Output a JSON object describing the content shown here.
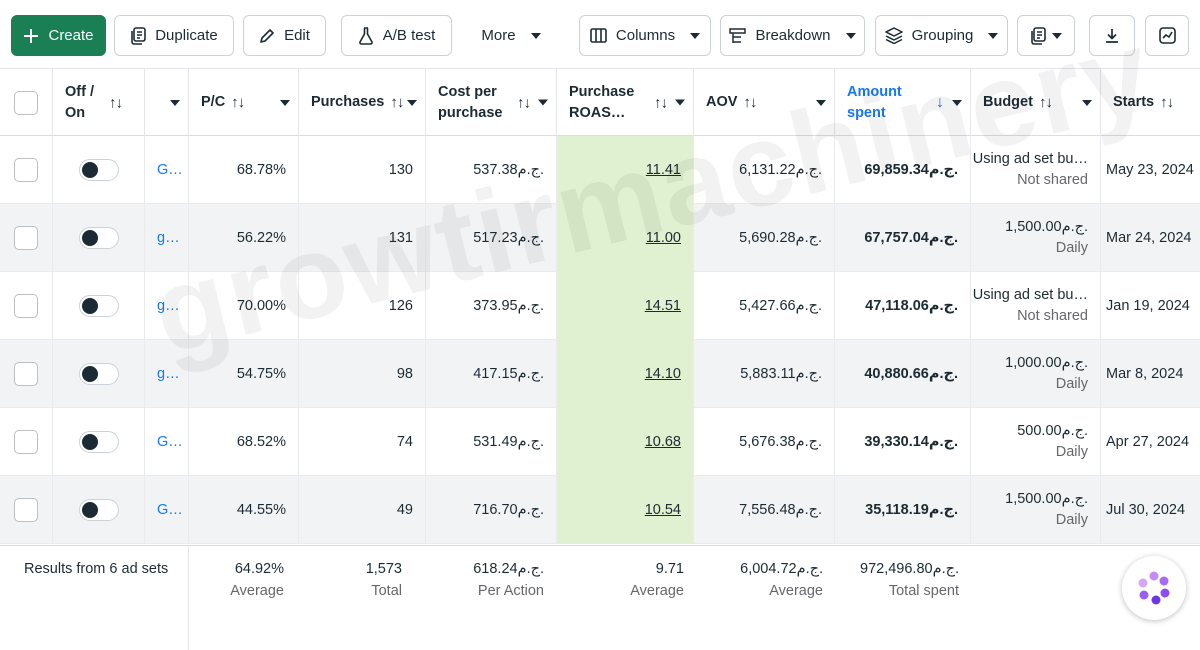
{
  "toolbar": {
    "create": "Create",
    "duplicate": "Duplicate",
    "edit": "Edit",
    "ab_test": "A/B test",
    "more": "More",
    "columns": "Columns",
    "breakdown": "Breakdown",
    "grouping": "Grouping"
  },
  "headers": {
    "off_on_1": "Off /",
    "off_on_2": "On",
    "pc": "P/C",
    "purchases": "Purchases",
    "cpp_1": "Cost per",
    "cpp_2": "purchase",
    "roas_1": "Purchase",
    "roas_2": "ROAS…",
    "aov": "AOV",
    "amount_1": "Amount",
    "amount_2": "spent",
    "budget": "Budget",
    "starts": "Starts"
  },
  "rows": [
    {
      "name": "G…",
      "pc": "68.78%",
      "purchases": "130",
      "cpp": "537.38ج.م.",
      "roas": "11.41",
      "aov": "6,131.22ج.م.",
      "amount": "69,859.34ج.م.",
      "budget_main": "Using ad set bu…",
      "budget_sub": "Not shared",
      "starts": "May 23, 2024"
    },
    {
      "name": "g…",
      "pc": "56.22%",
      "purchases": "131",
      "cpp": "517.23ج.م.",
      "roas": "11.00",
      "aov": "5,690.28ج.م.",
      "amount": "67,757.04ج.م.",
      "budget_main": "1,500.00ج.م.",
      "budget_sub": "Daily",
      "starts": "Mar 24, 2024"
    },
    {
      "name": "g…",
      "pc": "70.00%",
      "purchases": "126",
      "cpp": "373.95ج.م.",
      "roas": "14.51",
      "aov": "5,427.66ج.م.",
      "amount": "47,118.06ج.م.",
      "budget_main": "Using ad set bu…",
      "budget_sub": "Not shared",
      "starts": "Jan 19, 2024"
    },
    {
      "name": "g…",
      "pc": "54.75%",
      "purchases": "98",
      "cpp": "417.15ج.م.",
      "roas": "14.10",
      "aov": "5,883.11ج.م.",
      "amount": "40,880.66ج.م.",
      "budget_main": "1,000.00ج.م.",
      "budget_sub": "Daily",
      "starts": "Mar 8, 2024"
    },
    {
      "name": "G…",
      "pc": "68.52%",
      "purchases": "74",
      "cpp": "531.49ج.م.",
      "roas": "10.68",
      "aov": "5,676.38ج.م.",
      "amount": "39,330.14ج.م.",
      "budget_main": "500.00ج.م.",
      "budget_sub": "Daily",
      "starts": "Apr 27, 2024"
    },
    {
      "name": "G…",
      "pc": "44.55%",
      "purchases": "49",
      "cpp": "716.70ج.م.",
      "roas": "10.54",
      "aov": "7,556.48ج.م.",
      "amount": "35,118.19ج.م.",
      "budget_main": "1,500.00ج.م.",
      "budget_sub": "Daily",
      "starts": "Jul 30, 2024"
    }
  ],
  "footer": {
    "results": "Results from 6 ad sets",
    "pc": "64.92%",
    "pc_sub": "Average",
    "purchases": "1,573",
    "purchases_sub": "Total",
    "cpp": "618.24ج.م.",
    "cpp_sub": "Per Action",
    "roas": "9.71",
    "roas_sub": "Average",
    "aov": "6,004.72ج.م.",
    "aov_sub": "Average",
    "amount": "972,496.80ج.م.",
    "amount_sub": "Total spent"
  },
  "watermark": "growtirmachinery",
  "colors": {
    "primary": "#1a7f55",
    "link": "#1877f2",
    "roas_highlight": "#dff1d0"
  },
  "icons": [
    "plus-icon",
    "duplicate-icon",
    "pencil-icon",
    "flask-icon",
    "columns-icon",
    "breakdown-icon",
    "layers-icon",
    "report-icon",
    "download-icon",
    "chart-icon",
    "sort-icon",
    "assistant-icon"
  ]
}
